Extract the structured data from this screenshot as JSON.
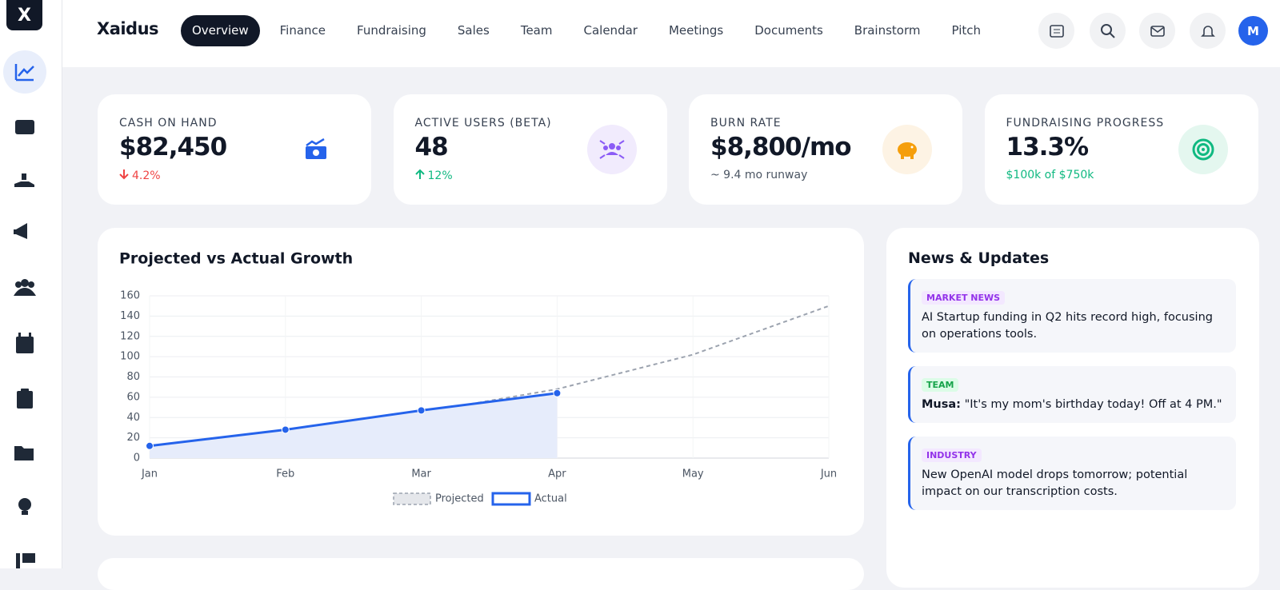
{
  "sidebar": {
    "logo": "X"
  },
  "header": {
    "brand": "Xaidus",
    "nav": [
      "Overview",
      "Finance",
      "Fundraising",
      "Sales",
      "Team",
      "Calendar",
      "Meetings",
      "Documents",
      "Brainstorm",
      "Pitch"
    ],
    "avatar": "M"
  },
  "kpis": [
    {
      "label": "CASH ON HAND",
      "value": "$82,450",
      "delta": "4.2%"
    },
    {
      "label": "ACTIVE USERS (BETA)",
      "value": "48",
      "delta": "12%"
    },
    {
      "label": "BURN RATE",
      "value": "$8,800/mo",
      "delta": "~ 9.4 mo runway"
    },
    {
      "label": "FUNDRAISING PROGRESS",
      "value": "13.3%",
      "delta": "$100k of $750k"
    }
  ],
  "chart_data": {
    "type": "line",
    "title": "Projected vs Actual Growth",
    "categories": [
      "Jan",
      "Feb",
      "Mar",
      "Apr",
      "May",
      "Jun"
    ],
    "series": [
      {
        "name": "Projected",
        "color": "#9ca3af",
        "dashed": true,
        "values": [
          10,
          25,
          45,
          68,
          102,
          150
        ]
      },
      {
        "name": "Actual",
        "color": "#2563eb",
        "area": "#e6ecfb",
        "values": [
          12,
          28,
          47,
          64,
          null,
          null
        ]
      }
    ],
    "ylim": [
      0,
      160
    ],
    "yticks": [
      0,
      20,
      40,
      60,
      80,
      100,
      120,
      140,
      160
    ],
    "grid": true,
    "legend": "bottom"
  },
  "news": {
    "title": "News & Updates",
    "items": [
      {
        "tag": "MARKET NEWS",
        "text": "AI Startup funding in Q2 hits record high, focusing on operations tools."
      },
      {
        "tag": "TEAM",
        "author": "Musa:",
        "text": "\"It's my mom's birthday today! Off at 4 PM.\""
      },
      {
        "tag": "INDUSTRY",
        "text": "New OpenAI model drops tomorrow; potential impact on our transcription costs."
      }
    ]
  }
}
